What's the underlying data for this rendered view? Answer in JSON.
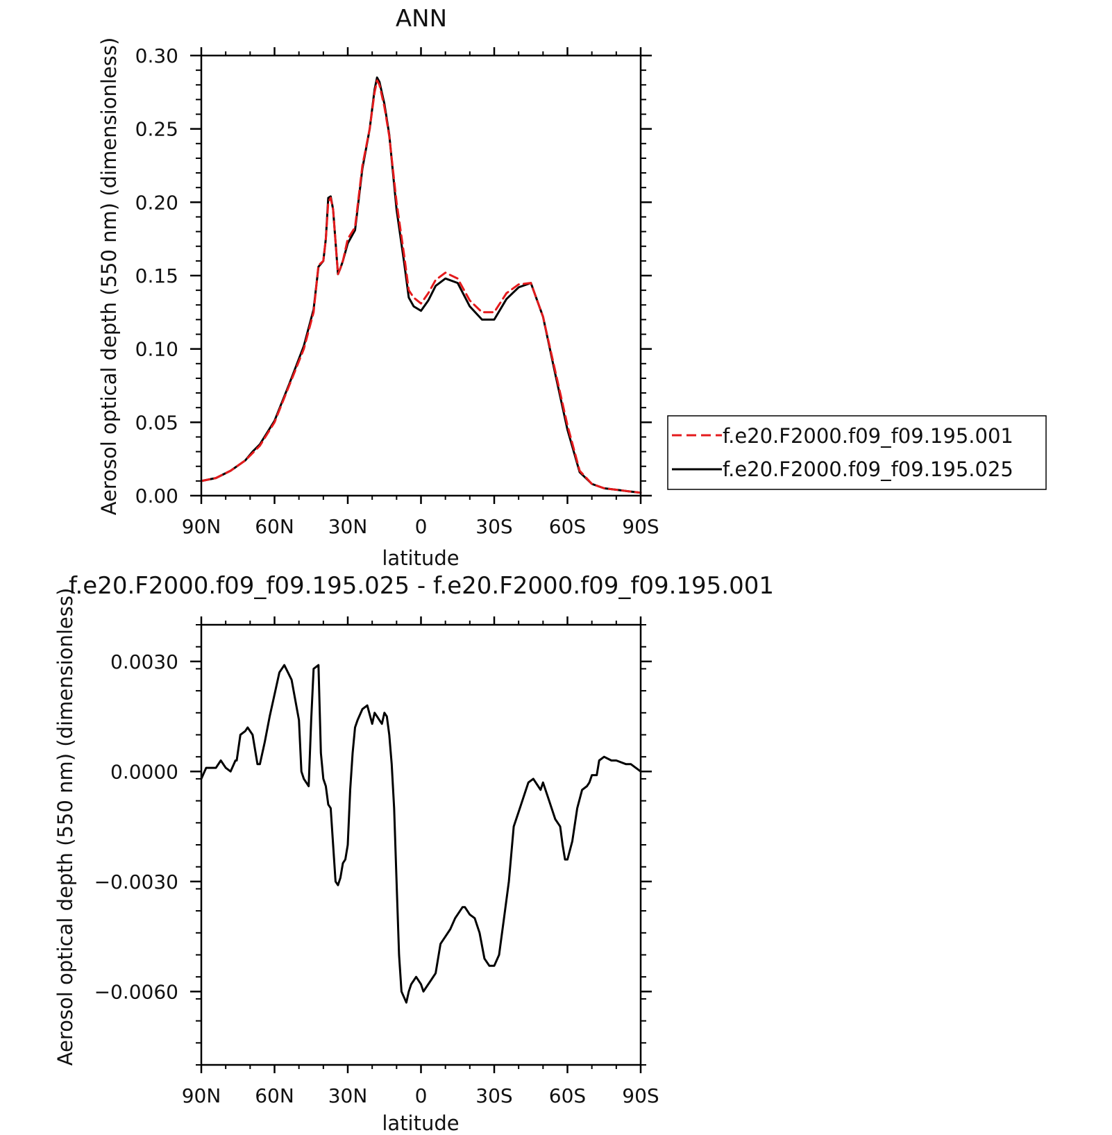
{
  "chart_data": [
    {
      "type": "line",
      "title": "ANN",
      "xlabel": "latitude",
      "ylabel": "Aerosol optical depth (550 nm) (dimensionless)",
      "xlim": [
        90,
        -90
      ],
      "ylim": [
        0,
        0.3
      ],
      "x_ticks": [
        90,
        60,
        30,
        0,
        -30,
        -60,
        -90
      ],
      "x_tick_labels": [
        "90N",
        "60N",
        "30N",
        "0",
        "30S",
        "60S",
        "90S"
      ],
      "y_ticks": [
        0,
        0.05,
        0.1,
        0.15,
        0.2,
        0.25,
        0.3
      ],
      "y_tick_labels": [
        "0.00",
        "0.05",
        "0.10",
        "0.15",
        "0.20",
        "0.25",
        "0.30"
      ],
      "legend_position": "right",
      "x": [
        90,
        84,
        78,
        72,
        69,
        66,
        60,
        54,
        48,
        44,
        42,
        40,
        39,
        38,
        37,
        36,
        34,
        33,
        32,
        30,
        27,
        24,
        21,
        19,
        18,
        17,
        15,
        13,
        10,
        7,
        5,
        3,
        0,
        -3,
        -6,
        -10,
        -15,
        -20,
        -25,
        -30,
        -35,
        -40,
        -45,
        -50,
        -55,
        -60,
        -65,
        -70,
        -75,
        -80,
        -85,
        -90
      ],
      "series": [
        {
          "name": "f.e20.F2000.f09_f09.195.001",
          "color": "#e41a1c",
          "dash": "dashed",
          "values": [
            0.01,
            0.012,
            0.017,
            0.024,
            0.029,
            0.034,
            0.05,
            0.075,
            0.1,
            0.125,
            0.157,
            0.16,
            0.175,
            0.2,
            0.203,
            0.195,
            0.151,
            0.155,
            0.16,
            0.175,
            0.183,
            0.225,
            0.25,
            0.275,
            0.283,
            0.28,
            0.265,
            0.245,
            0.2,
            0.165,
            0.14,
            0.135,
            0.131,
            0.138,
            0.147,
            0.152,
            0.148,
            0.133,
            0.125,
            0.125,
            0.138,
            0.144,
            0.145,
            0.122,
            0.085,
            0.048,
            0.017,
            0.008,
            0.005,
            0.004,
            0.003,
            0.002
          ]
        },
        {
          "name": "f.e20.F2000.f09_f09.195.025",
          "color": "#000000",
          "dash": "solid",
          "values": [
            0.01,
            0.012,
            0.017,
            0.024,
            0.03,
            0.035,
            0.051,
            0.076,
            0.102,
            0.127,
            0.156,
            0.16,
            0.175,
            0.203,
            0.204,
            0.195,
            0.151,
            0.155,
            0.16,
            0.172,
            0.181,
            0.223,
            0.25,
            0.277,
            0.285,
            0.282,
            0.267,
            0.246,
            0.195,
            0.16,
            0.135,
            0.129,
            0.126,
            0.133,
            0.143,
            0.148,
            0.145,
            0.129,
            0.12,
            0.12,
            0.134,
            0.142,
            0.145,
            0.122,
            0.083,
            0.045,
            0.016,
            0.008,
            0.005,
            0.004,
            0.003,
            0.002
          ]
        }
      ]
    },
    {
      "type": "line",
      "title": "f.e20.F2000.f09_f09.195.025 - f.e20.F2000.f09_f09.195.001",
      "xlabel": "latitude",
      "ylabel": "Aerosol optical depth (550 nm) (dimensionless)",
      "xlim": [
        90,
        -90
      ],
      "ylim": [
        -0.008,
        0.004
      ],
      "x_ticks": [
        90,
        60,
        30,
        0,
        -30,
        -60,
        -90
      ],
      "x_tick_labels": [
        "90N",
        "60N",
        "30N",
        "0",
        "30S",
        "60S",
        "90S"
      ],
      "y_ticks": [
        -0.006,
        -0.003,
        0,
        0.003
      ],
      "y_tick_labels": [
        "−0.0060",
        "−0.0030",
        "0.0000",
        "0.0030"
      ],
      "x": [
        90,
        88,
        86,
        84,
        82,
        80,
        78,
        76,
        75.5,
        74,
        72,
        71,
        69,
        67,
        66,
        64,
        62,
        60,
        58,
        56,
        53,
        50,
        49,
        48,
        46,
        45,
        44,
        42,
        41,
        40,
        39,
        38,
        37,
        36,
        35,
        34,
        33,
        32,
        31,
        30,
        29,
        28,
        27,
        26,
        24,
        22,
        20,
        19,
        18,
        17,
        16,
        15,
        14,
        13,
        12,
        11,
        10,
        9,
        8,
        6,
        5,
        4,
        3,
        2,
        0,
        -1,
        -2,
        -4,
        -6,
        -8,
        -10,
        -12,
        -14,
        -16,
        -17,
        -18,
        -20,
        -22,
        -24,
        -26,
        -28,
        -30,
        -32,
        -34,
        -36,
        -38,
        -40,
        -42,
        -44,
        -46,
        -48,
        -49,
        -50,
        -52,
        -55,
        -57,
        -58,
        -59,
        -60,
        -62,
        -64,
        -66,
        -68,
        -69,
        -70,
        -72,
        -73,
        -75,
        -78,
        -80,
        -84,
        -86,
        -90
      ],
      "series": [
        {
          "name": "",
          "color": "#000000",
          "dash": "solid",
          "values": [
            -0.0002,
            0.0001,
            0.0001,
            0.0001,
            0.0003,
            0.0001,
            0.0,
            0.0003,
            0.0003,
            0.001,
            0.0011,
            0.0012,
            0.001,
            0.0002,
            0.0002,
            0.0008,
            0.0015,
            0.0021,
            0.0027,
            0.0029,
            0.0025,
            0.0014,
            0.0,
            -0.0002,
            -0.0004,
            0.0014,
            0.0028,
            0.0029,
            0.0005,
            -0.0002,
            -0.0004,
            -0.0009,
            -0.001,
            -0.002,
            -0.003,
            -0.0031,
            -0.0029,
            -0.0025,
            -0.0024,
            -0.002,
            -0.0005,
            0.0005,
            0.0012,
            0.0014,
            0.0017,
            0.0018,
            0.0013,
            0.0016,
            0.0015,
            0.0014,
            0.0013,
            0.0016,
            0.0015,
            0.001,
            0.0002,
            -0.001,
            -0.003,
            -0.005,
            -0.006,
            -0.0063,
            -0.006,
            -0.0058,
            -0.0057,
            -0.0056,
            -0.0058,
            -0.006,
            -0.0059,
            -0.0057,
            -0.0055,
            -0.0047,
            -0.0045,
            -0.0043,
            -0.004,
            -0.0038,
            -0.0037,
            -0.0037,
            -0.0039,
            -0.004,
            -0.0044,
            -0.0051,
            -0.0053,
            -0.0053,
            -0.005,
            -0.004,
            -0.003,
            -0.0015,
            -0.0011,
            -0.0007,
            -0.0003,
            -0.0002,
            -0.0004,
            -0.0005,
            -0.0003,
            -0.0007,
            -0.0013,
            -0.0015,
            -0.002,
            -0.0024,
            -0.0024,
            -0.0019,
            -0.001,
            -0.0005,
            -0.0004,
            -0.0003,
            -0.0001,
            -0.0001,
            0.0003,
            0.0004,
            0.0003,
            0.0003,
            0.0002,
            0.0002,
            0.0
          ]
        }
      ]
    }
  ]
}
